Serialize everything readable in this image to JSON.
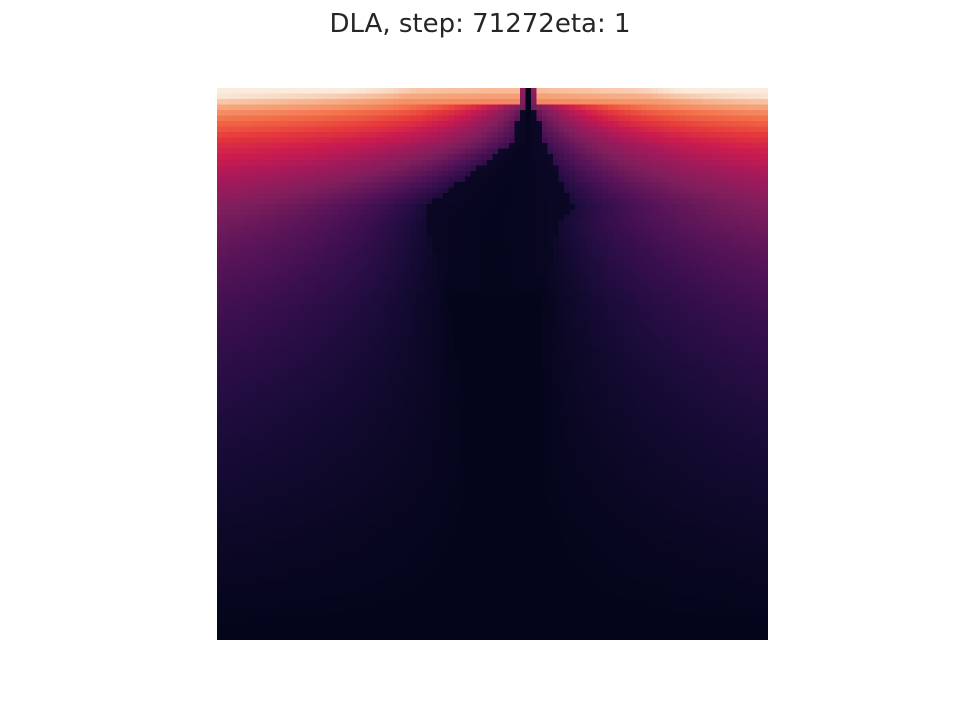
{
  "chart_data": {
    "type": "heatmap",
    "title": "DLA, step: 71272eta: 1",
    "xlabel": "",
    "ylabel": "",
    "grid": false,
    "axes_visible": false,
    "colormap": "rocket",
    "value_range": [
      0,
      1
    ],
    "field_description": "potential field, value 1 at top boundary decaying toward 0 at bottom, with dark aggregate cluster hanging from top center",
    "row_profile": {
      "rows": [
        0,
        5,
        10,
        15,
        20,
        25,
        30,
        40,
        50,
        60,
        70,
        80,
        90,
        100
      ],
      "values": [
        1.0,
        0.78,
        0.62,
        0.52,
        0.44,
        0.38,
        0.33,
        0.25,
        0.19,
        0.14,
        0.1,
        0.06,
        0.03,
        0.0
      ]
    },
    "colorscale": [
      [
        0.0,
        "#03051a"
      ],
      [
        0.1,
        "#1b0c3b"
      ],
      [
        0.2,
        "#3b0f4f"
      ],
      [
        0.3,
        "#5c1559"
      ],
      [
        0.4,
        "#7f1e5c"
      ],
      [
        0.5,
        "#a11a5b"
      ],
      [
        0.6,
        "#cb1b4f"
      ],
      [
        0.7,
        "#e63a3a"
      ],
      [
        0.8,
        "#f26d47"
      ],
      [
        0.9,
        "#f6a67c"
      ],
      [
        1.0,
        "#faebdd"
      ]
    ]
  }
}
